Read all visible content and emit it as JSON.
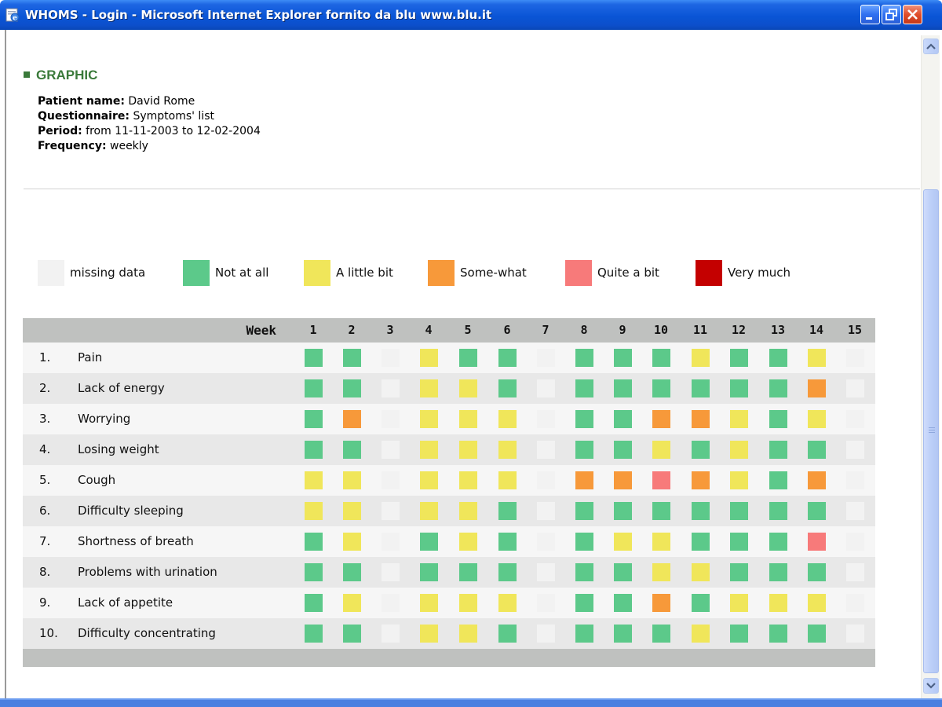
{
  "window": {
    "title": "WHOMS - Login - Microsoft Internet Explorer fornito da blu  www.blu.it",
    "icon": "ie-page-icon"
  },
  "section": {
    "title": "GRAPHIC"
  },
  "info": {
    "patient_label": "Patient name:",
    "patient_value": "David Rome",
    "questionnaire_label": "Questionnaire:",
    "questionnaire_value": "Symptoms' list",
    "period_label": "Period:",
    "period_value": "from 11-11-2003 to 12-02-2004",
    "frequency_label": "Frequency:",
    "frequency_value": "weekly"
  },
  "colors": {
    "missing": "#f2f2f2",
    "not_at_all": "#5cc98a",
    "a_little_bit": "#f0e65a",
    "some_what": "#f7993a",
    "quite_a_bit": "#f77a7a",
    "very_much": "#c40000"
  },
  "legend": [
    {
      "key": "missing",
      "label": "missing data"
    },
    {
      "key": "not_at_all",
      "label": "Not at all"
    },
    {
      "key": "a_little_bit",
      "label": "A little bit"
    },
    {
      "key": "some_what",
      "label": "Some-what"
    },
    {
      "key": "quite_a_bit",
      "label": "Quite a bit"
    },
    {
      "key": "very_much",
      "label": "Very much"
    }
  ],
  "table": {
    "week_label": "Week",
    "weeks": [
      "1",
      "2",
      "3",
      "4",
      "5",
      "6",
      "7",
      "8",
      "9",
      "10",
      "11",
      "12",
      "13",
      "14",
      "15"
    ],
    "rows": [
      {
        "num": "1.",
        "label": "Pain",
        "values": [
          "not_at_all",
          "not_at_all",
          "missing",
          "a_little_bit",
          "not_at_all",
          "not_at_all",
          "missing",
          "not_at_all",
          "not_at_all",
          "not_at_all",
          "a_little_bit",
          "not_at_all",
          "not_at_all",
          "a_little_bit",
          "missing"
        ]
      },
      {
        "num": "2.",
        "label": "Lack of energy",
        "values": [
          "not_at_all",
          "not_at_all",
          "missing",
          "a_little_bit",
          "a_little_bit",
          "not_at_all",
          "missing",
          "not_at_all",
          "not_at_all",
          "not_at_all",
          "not_at_all",
          "not_at_all",
          "not_at_all",
          "some_what",
          "missing"
        ]
      },
      {
        "num": "3.",
        "label": "Worrying",
        "values": [
          "not_at_all",
          "some_what",
          "missing",
          "a_little_bit",
          "a_little_bit",
          "a_little_bit",
          "missing",
          "not_at_all",
          "not_at_all",
          "some_what",
          "some_what",
          "a_little_bit",
          "not_at_all",
          "a_little_bit",
          "missing"
        ]
      },
      {
        "num": "4.",
        "label": "Losing weight",
        "values": [
          "not_at_all",
          "not_at_all",
          "missing",
          "a_little_bit",
          "a_little_bit",
          "a_little_bit",
          "missing",
          "not_at_all",
          "not_at_all",
          "a_little_bit",
          "not_at_all",
          "a_little_bit",
          "not_at_all",
          "not_at_all",
          "missing"
        ]
      },
      {
        "num": "5.",
        "label": "Cough",
        "values": [
          "a_little_bit",
          "a_little_bit",
          "missing",
          "a_little_bit",
          "a_little_bit",
          "a_little_bit",
          "missing",
          "some_what",
          "some_what",
          "quite_a_bit",
          "some_what",
          "a_little_bit",
          "not_at_all",
          "some_what",
          "missing"
        ]
      },
      {
        "num": "6.",
        "label": "Difficulty sleeping",
        "values": [
          "a_little_bit",
          "a_little_bit",
          "missing",
          "a_little_bit",
          "a_little_bit",
          "not_at_all",
          "missing",
          "not_at_all",
          "not_at_all",
          "not_at_all",
          "not_at_all",
          "not_at_all",
          "not_at_all",
          "not_at_all",
          "missing"
        ]
      },
      {
        "num": "7.",
        "label": "Shortness of breath",
        "values": [
          "not_at_all",
          "a_little_bit",
          "missing",
          "not_at_all",
          "a_little_bit",
          "not_at_all",
          "missing",
          "not_at_all",
          "a_little_bit",
          "a_little_bit",
          "not_at_all",
          "not_at_all",
          "not_at_all",
          "quite_a_bit",
          "missing"
        ]
      },
      {
        "num": "8.",
        "label": "Problems with urination",
        "values": [
          "not_at_all",
          "not_at_all",
          "missing",
          "not_at_all",
          "not_at_all",
          "not_at_all",
          "missing",
          "not_at_all",
          "not_at_all",
          "a_little_bit",
          "a_little_bit",
          "not_at_all",
          "not_at_all",
          "not_at_all",
          "missing"
        ]
      },
      {
        "num": "9.",
        "label": "Lack of appetite",
        "values": [
          "not_at_all",
          "a_little_bit",
          "missing",
          "a_little_bit",
          "a_little_bit",
          "a_little_bit",
          "missing",
          "not_at_all",
          "not_at_all",
          "some_what",
          "not_at_all",
          "a_little_bit",
          "a_little_bit",
          "a_little_bit",
          "missing"
        ]
      },
      {
        "num": "10.",
        "label": "Difficulty concentrating",
        "values": [
          "not_at_all",
          "not_at_all",
          "missing",
          "a_little_bit",
          "a_little_bit",
          "not_at_all",
          "missing",
          "not_at_all",
          "not_at_all",
          "not_at_all",
          "a_little_bit",
          "not_at_all",
          "not_at_all",
          "not_at_all",
          "missing"
        ]
      }
    ]
  }
}
